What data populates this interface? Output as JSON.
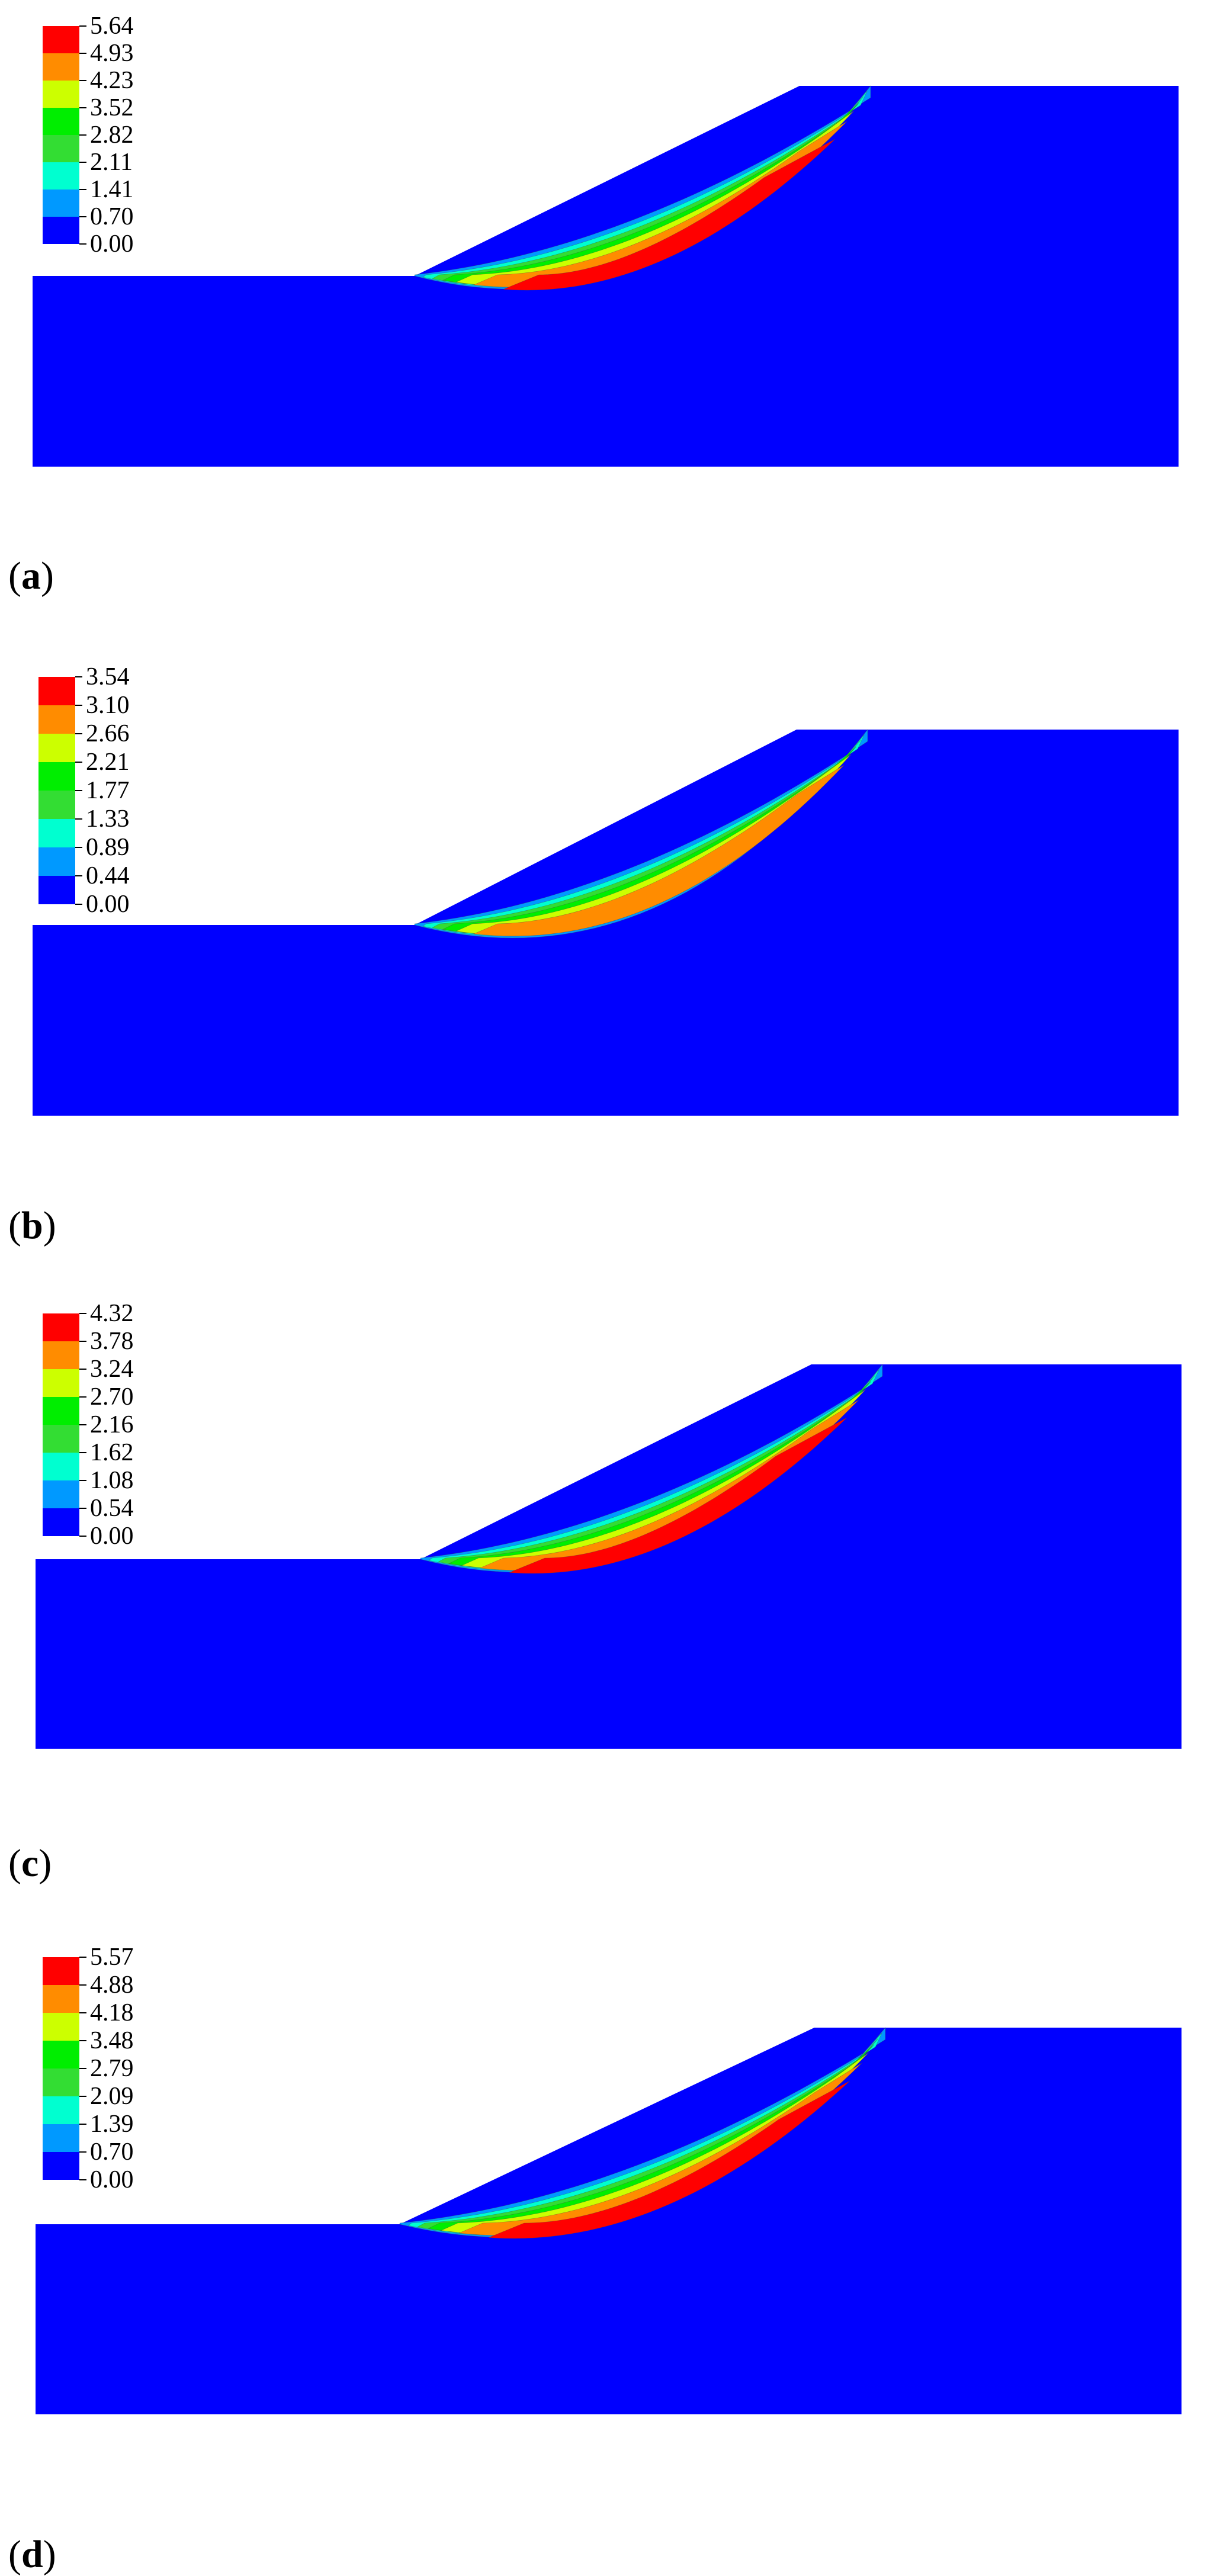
{
  "colors": {
    "background": "#0000ff",
    "legend_swatches": [
      "#ff0000",
      "#ff8c00",
      "#ccff00",
      "#00ee00",
      "#33dd33",
      "#00ffd0",
      "#0099ff",
      "#0000ff"
    ]
  },
  "panels": [
    {
      "letter": "a",
      "legend_ticks": [
        "5.64",
        "4.93",
        "4.23",
        "3.52",
        "2.82",
        "2.11",
        "1.41",
        "0.70",
        "0.00"
      ],
      "max_level": 8
    },
    {
      "letter": "b",
      "legend_ticks": [
        "3.54",
        "3.10",
        "2.66",
        "2.21",
        "1.77",
        "1.33",
        "0.89",
        "0.44",
        "0.00"
      ],
      "max_level": 7
    },
    {
      "letter": "c",
      "legend_ticks": [
        "4.32",
        "3.78",
        "3.24",
        "2.70",
        "2.16",
        "1.62",
        "1.08",
        "0.54",
        "0.00"
      ],
      "max_level": 8
    },
    {
      "letter": "d",
      "legend_ticks": [
        "5.57",
        "4.88",
        "4.18",
        "3.48",
        "2.79",
        "2.09",
        "1.39",
        "0.70",
        "0.00"
      ],
      "max_level": 8
    }
  ]
}
